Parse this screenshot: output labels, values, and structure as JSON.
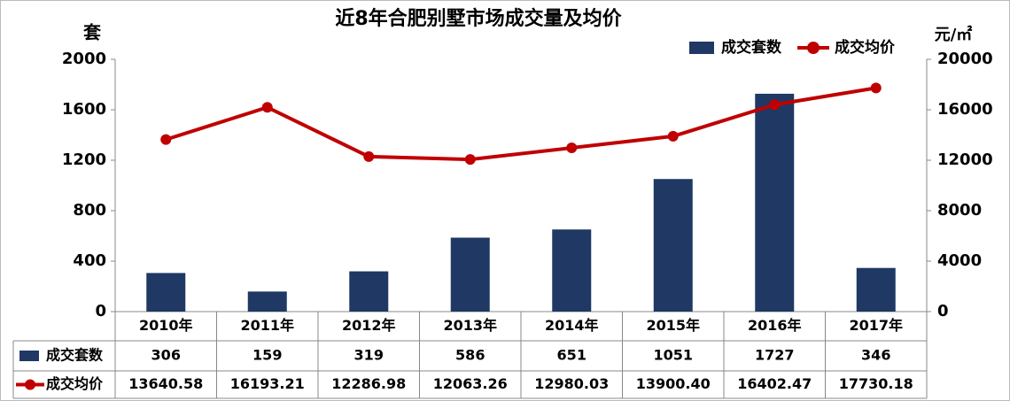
{
  "chart_data": {
    "type": "bar-line",
    "title": "近8年合肥别墅市场成交量及均价",
    "y_label": "套",
    "y2_label": "元/㎡",
    "categories": [
      "2010年",
      "2011年",
      "2012年",
      "2013年",
      "2014年",
      "2015年",
      "2016年",
      "2017年"
    ],
    "series": [
      {
        "name": "成交套数",
        "type": "bar",
        "color": "#1f3864",
        "values": [
          306,
          159,
          319,
          586,
          651,
          1051,
          1727,
          346
        ]
      },
      {
        "name": "成交均价",
        "type": "line",
        "axis": "y2",
        "color": "#c00000",
        "values": [
          13640.58,
          16193.21,
          12286.98,
          12063.26,
          12980.03,
          13900.4,
          16402.47,
          17730.18
        ],
        "value_labels": [
          "13640.58",
          "16193.21",
          "12286.98",
          "12063.26",
          "12980.03",
          "13900.40",
          "16402.47",
          "17730.18"
        ]
      }
    ],
    "ylim": [
      0,
      2000
    ],
    "yticks": [
      0,
      400,
      800,
      1200,
      1600,
      2000
    ],
    "y2lim": [
      0,
      20000
    ],
    "y2ticks": [
      0,
      4000,
      8000,
      12000,
      16000,
      20000
    ],
    "legend": "top-right",
    "data_table": true
  }
}
